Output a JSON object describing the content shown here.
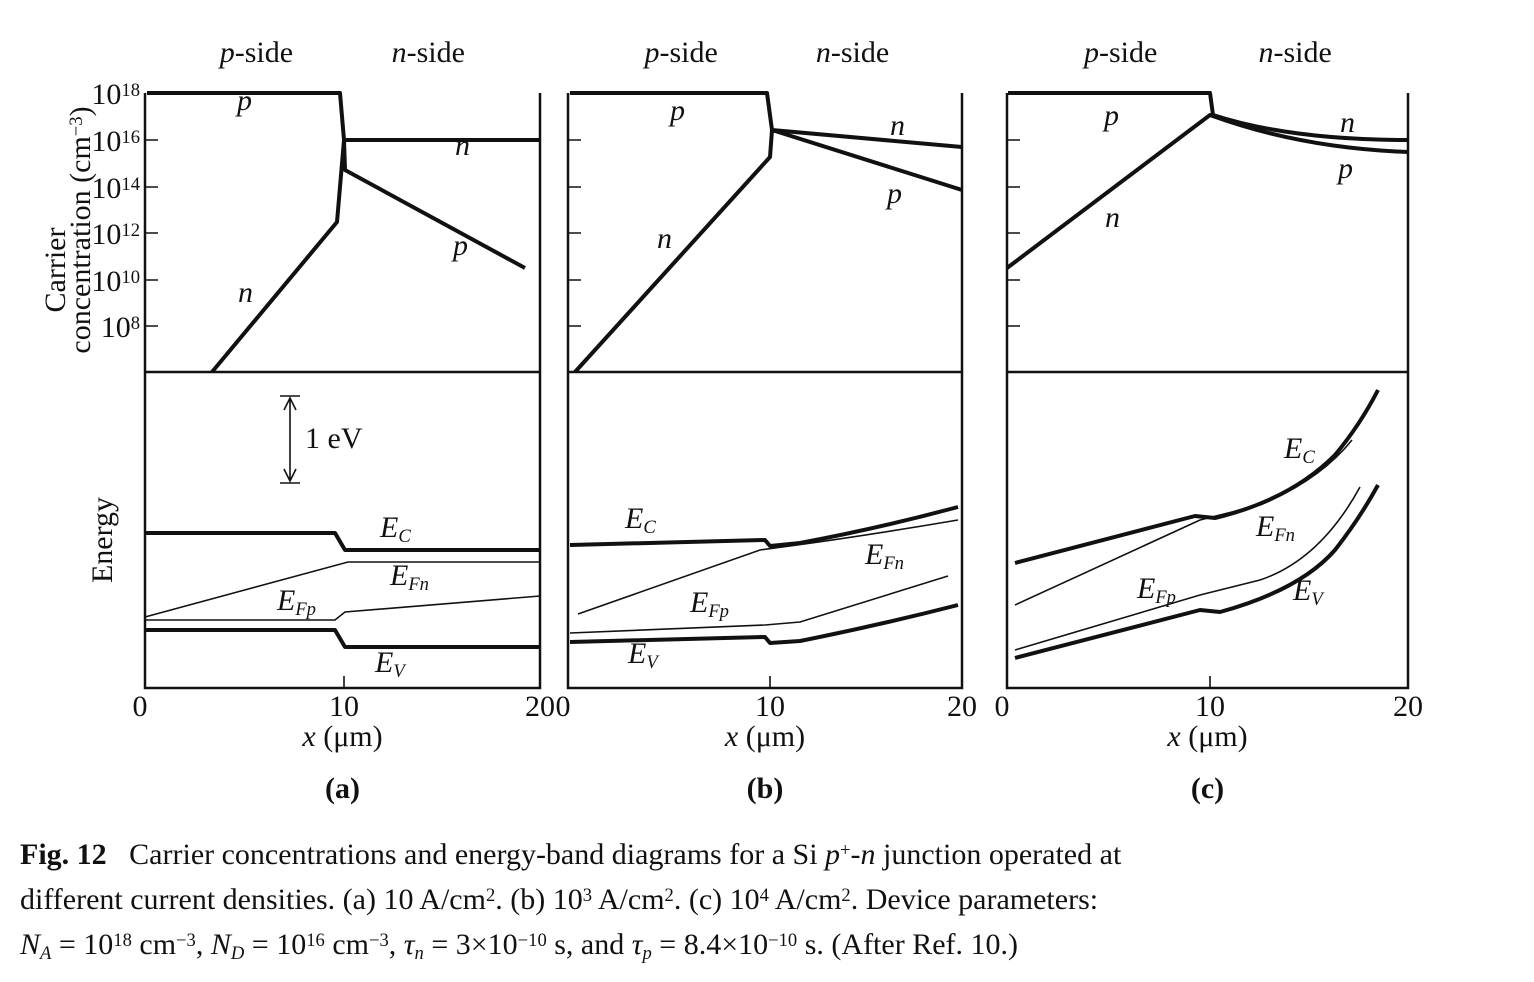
{
  "figure": {
    "y_axis_label": [
      [
        {
          "t": "Carrier",
          "s": ""
        }
      ],
      [
        {
          "t": "concentration (cm",
          "s": ""
        },
        {
          "t": "−3",
          "s": "sup"
        },
        {
          "t": ")",
          "s": ""
        }
      ]
    ],
    "y_ticks": [
      [
        {
          "t": "10",
          "s": ""
        },
        {
          "t": "18",
          "s": "sup"
        }
      ],
      [
        {
          "t": "10",
          "s": ""
        },
        {
          "t": "16",
          "s": "sup"
        }
      ],
      [
        {
          "t": "10",
          "s": ""
        },
        {
          "t": "14",
          "s": "sup"
        }
      ],
      [
        {
          "t": "10",
          "s": ""
        },
        {
          "t": "12",
          "s": "sup"
        }
      ],
      [
        {
          "t": "10",
          "s": ""
        },
        {
          "t": "10",
          "s": "sup"
        }
      ],
      [
        {
          "t": "10",
          "s": ""
        },
        {
          "t": "8",
          "s": "sup"
        }
      ]
    ],
    "energy_label": "Energy",
    "scale_bar": "1 eV",
    "panels": [
      {
        "sides": [
          [
            {
              "t": "p",
              "s": "i"
            },
            {
              "t": "-side",
              "s": ""
            }
          ],
          [
            {
              "t": "n",
              "s": "i"
            },
            {
              "t": "-side",
              "s": ""
            }
          ]
        ],
        "curve_labels": [
          [
            {
              "t": "p",
              "s": "i"
            }
          ],
          [
            {
              "t": "n",
              "s": "i"
            }
          ],
          [
            {
              "t": "p",
              "s": "i"
            }
          ],
          [
            {
              "t": "n",
              "s": "i"
            }
          ],
          [
            {
              "t": "E",
              "s": "i"
            },
            {
              "t": "C",
              "s": "sub"
            }
          ],
          [
            {
              "t": "E",
              "s": "i"
            },
            {
              "t": "Fn",
              "s": "sub"
            }
          ],
          [
            {
              "t": "E",
              "s": "i"
            },
            {
              "t": "Fp",
              "s": "sub"
            }
          ],
          [
            {
              "t": "E",
              "s": "i"
            },
            {
              "t": "V",
              "s": "sub"
            }
          ]
        ],
        "x_ticks": [
          "0",
          "10",
          "20"
        ],
        "x_axis_label": [
          {
            "t": "x",
            "s": "i"
          },
          {
            "t": " (μm)",
            "s": ""
          }
        ],
        "label": "(a)"
      },
      {
        "sides": [
          [
            {
              "t": "p",
              "s": "i"
            },
            {
              "t": "-side",
              "s": ""
            }
          ],
          [
            {
              "t": "n",
              "s": "i"
            },
            {
              "t": "-side",
              "s": ""
            }
          ]
        ],
        "curve_labels": [
          [
            {
              "t": "p",
              "s": "i"
            }
          ],
          [
            {
              "t": "n",
              "s": "i"
            }
          ],
          [
            {
              "t": "p",
              "s": "i"
            }
          ],
          [
            {
              "t": "n",
              "s": "i"
            }
          ],
          [
            {
              "t": "E",
              "s": "i"
            },
            {
              "t": "C",
              "s": "sub"
            }
          ],
          [
            {
              "t": "E",
              "s": "i"
            },
            {
              "t": "Fn",
              "s": "sub"
            }
          ],
          [
            {
              "t": "E",
              "s": "i"
            },
            {
              "t": "Fp",
              "s": "sub"
            }
          ],
          [
            {
              "t": "E",
              "s": "i"
            },
            {
              "t": "V",
              "s": "sub"
            }
          ]
        ],
        "x_ticks": [
          "0",
          "10",
          "20"
        ],
        "x_axis_label": [
          {
            "t": "x",
            "s": "i"
          },
          {
            "t": " (μm)",
            "s": ""
          }
        ],
        "label": "(b)"
      },
      {
        "sides": [
          [
            {
              "t": "p",
              "s": "i"
            },
            {
              "t": "-side",
              "s": ""
            }
          ],
          [
            {
              "t": "n",
              "s": "i"
            },
            {
              "t": "-side",
              "s": ""
            }
          ]
        ],
        "curve_labels": [
          [
            {
              "t": "p",
              "s": "i"
            }
          ],
          [
            {
              "t": "n",
              "s": "i"
            }
          ],
          [
            {
              "t": "p",
              "s": "i"
            }
          ],
          [
            {
              "t": "n",
              "s": "i"
            }
          ],
          [
            {
              "t": "E",
              "s": "i"
            },
            {
              "t": "C",
              "s": "sub"
            }
          ],
          [
            {
              "t": "E",
              "s": "i"
            },
            {
              "t": "Fn",
              "s": "sub"
            }
          ],
          [
            {
              "t": "E",
              "s": "i"
            },
            {
              "t": "Fp",
              "s": "sub"
            }
          ],
          [
            {
              "t": "E",
              "s": "i"
            },
            {
              "t": "V",
              "s": "sub"
            }
          ]
        ],
        "x_ticks": [
          "0",
          "10",
          "20"
        ],
        "x_axis_label": [
          {
            "t": "x",
            "s": "i"
          },
          {
            "t": " (μm)",
            "s": ""
          }
        ],
        "label": "(c)"
      }
    ]
  },
  "caption": [
    [
      {
        "t": "Fig. 12",
        "s": "b"
      },
      {
        "t": "   Carrier concentrations and energy-band diagrams for a Si ",
        "s": ""
      },
      {
        "t": "p",
        "s": "i"
      },
      {
        "t": "+",
        "s": "sup"
      },
      {
        "t": "-",
        "s": ""
      },
      {
        "t": "n",
        "s": "i"
      },
      {
        "t": " junction operated at",
        "s": ""
      }
    ],
    [
      {
        "t": "different current densities. (a) 10 A/cm",
        "s": ""
      },
      {
        "t": "2",
        "s": "sup"
      },
      {
        "t": ". (b) 10",
        "s": ""
      },
      {
        "t": "3",
        "s": "sup"
      },
      {
        "t": " A/cm",
        "s": ""
      },
      {
        "t": "2",
        "s": "sup"
      },
      {
        "t": ". (c) 10",
        "s": ""
      },
      {
        "t": "4",
        "s": "sup"
      },
      {
        "t": " A/cm",
        "s": ""
      },
      {
        "t": "2",
        "s": "sup"
      },
      {
        "t": ". Device parameters:",
        "s": ""
      }
    ],
    [
      {
        "t": "N",
        "s": "i"
      },
      {
        "t": "A",
        "s": "sub"
      },
      {
        "t": " = 10",
        "s": ""
      },
      {
        "t": "18",
        "s": "sup"
      },
      {
        "t": " cm",
        "s": ""
      },
      {
        "t": "−3",
        "s": "sup"
      },
      {
        "t": ", ",
        "s": ""
      },
      {
        "t": "N",
        "s": "i"
      },
      {
        "t": "D",
        "s": "sub"
      },
      {
        "t": " = 10",
        "s": ""
      },
      {
        "t": "16",
        "s": "sup"
      },
      {
        "t": " cm",
        "s": ""
      },
      {
        "t": "−3",
        "s": "sup"
      },
      {
        "t": ", ",
        "s": ""
      },
      {
        "t": "τ",
        "s": "i"
      },
      {
        "t": "n",
        "s": "sub"
      },
      {
        "t": " = 3×10",
        "s": ""
      },
      {
        "t": "−10",
        "s": "sup"
      },
      {
        "t": " s, and ",
        "s": ""
      },
      {
        "t": "τ",
        "s": "i"
      },
      {
        "t": "p",
        "s": "sub"
      },
      {
        "t": " = 8.4×10",
        "s": ""
      },
      {
        "t": "−10",
        "s": "sup"
      },
      {
        "t": " s. (After Ref. 10.)",
        "s": ""
      }
    ]
  ]
}
